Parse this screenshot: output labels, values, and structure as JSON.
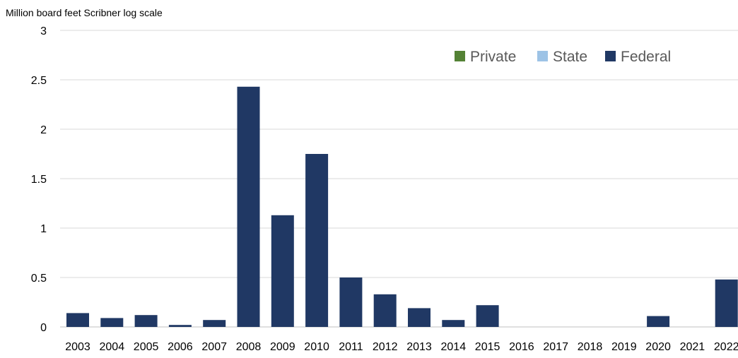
{
  "chart_data": {
    "type": "bar",
    "title": "",
    "ylabel": "Million board feet Scribner log scale",
    "xlabel": "",
    "ylim": [
      0,
      3
    ],
    "yticks": [
      "0",
      "0.5",
      "1",
      "1.5",
      "2",
      "2.5",
      "3"
    ],
    "grid": true,
    "legend_position": "top-right",
    "categories": [
      "2003",
      "2004",
      "2005",
      "2006",
      "2007",
      "2008",
      "2009",
      "2010",
      "2011",
      "2012",
      "2013",
      "2014",
      "2015",
      "2016",
      "2017",
      "2018",
      "2019",
      "2020",
      "2021",
      "2022"
    ],
    "series": [
      {
        "name": "Private",
        "color": "#548235",
        "values": [
          0,
          0,
          0,
          0,
          0,
          0,
          0,
          0,
          0,
          0,
          0,
          0,
          0,
          0,
          0,
          0,
          0,
          0,
          0,
          0
        ]
      },
      {
        "name": "State",
        "color": "#9DC3E6",
        "values": [
          0,
          0,
          0,
          0,
          0,
          0,
          0,
          0,
          0,
          0,
          0,
          0,
          0,
          0,
          0,
          0,
          0,
          0,
          0,
          0
        ]
      },
      {
        "name": "Federal",
        "color": "#203864",
        "values": [
          0.14,
          0.09,
          0.12,
          0.02,
          0.07,
          2.43,
          1.13,
          1.75,
          0.5,
          0.33,
          0.19,
          0.07,
          0.22,
          0,
          0,
          0,
          0,
          0.11,
          0,
          0.48
        ]
      }
    ]
  }
}
